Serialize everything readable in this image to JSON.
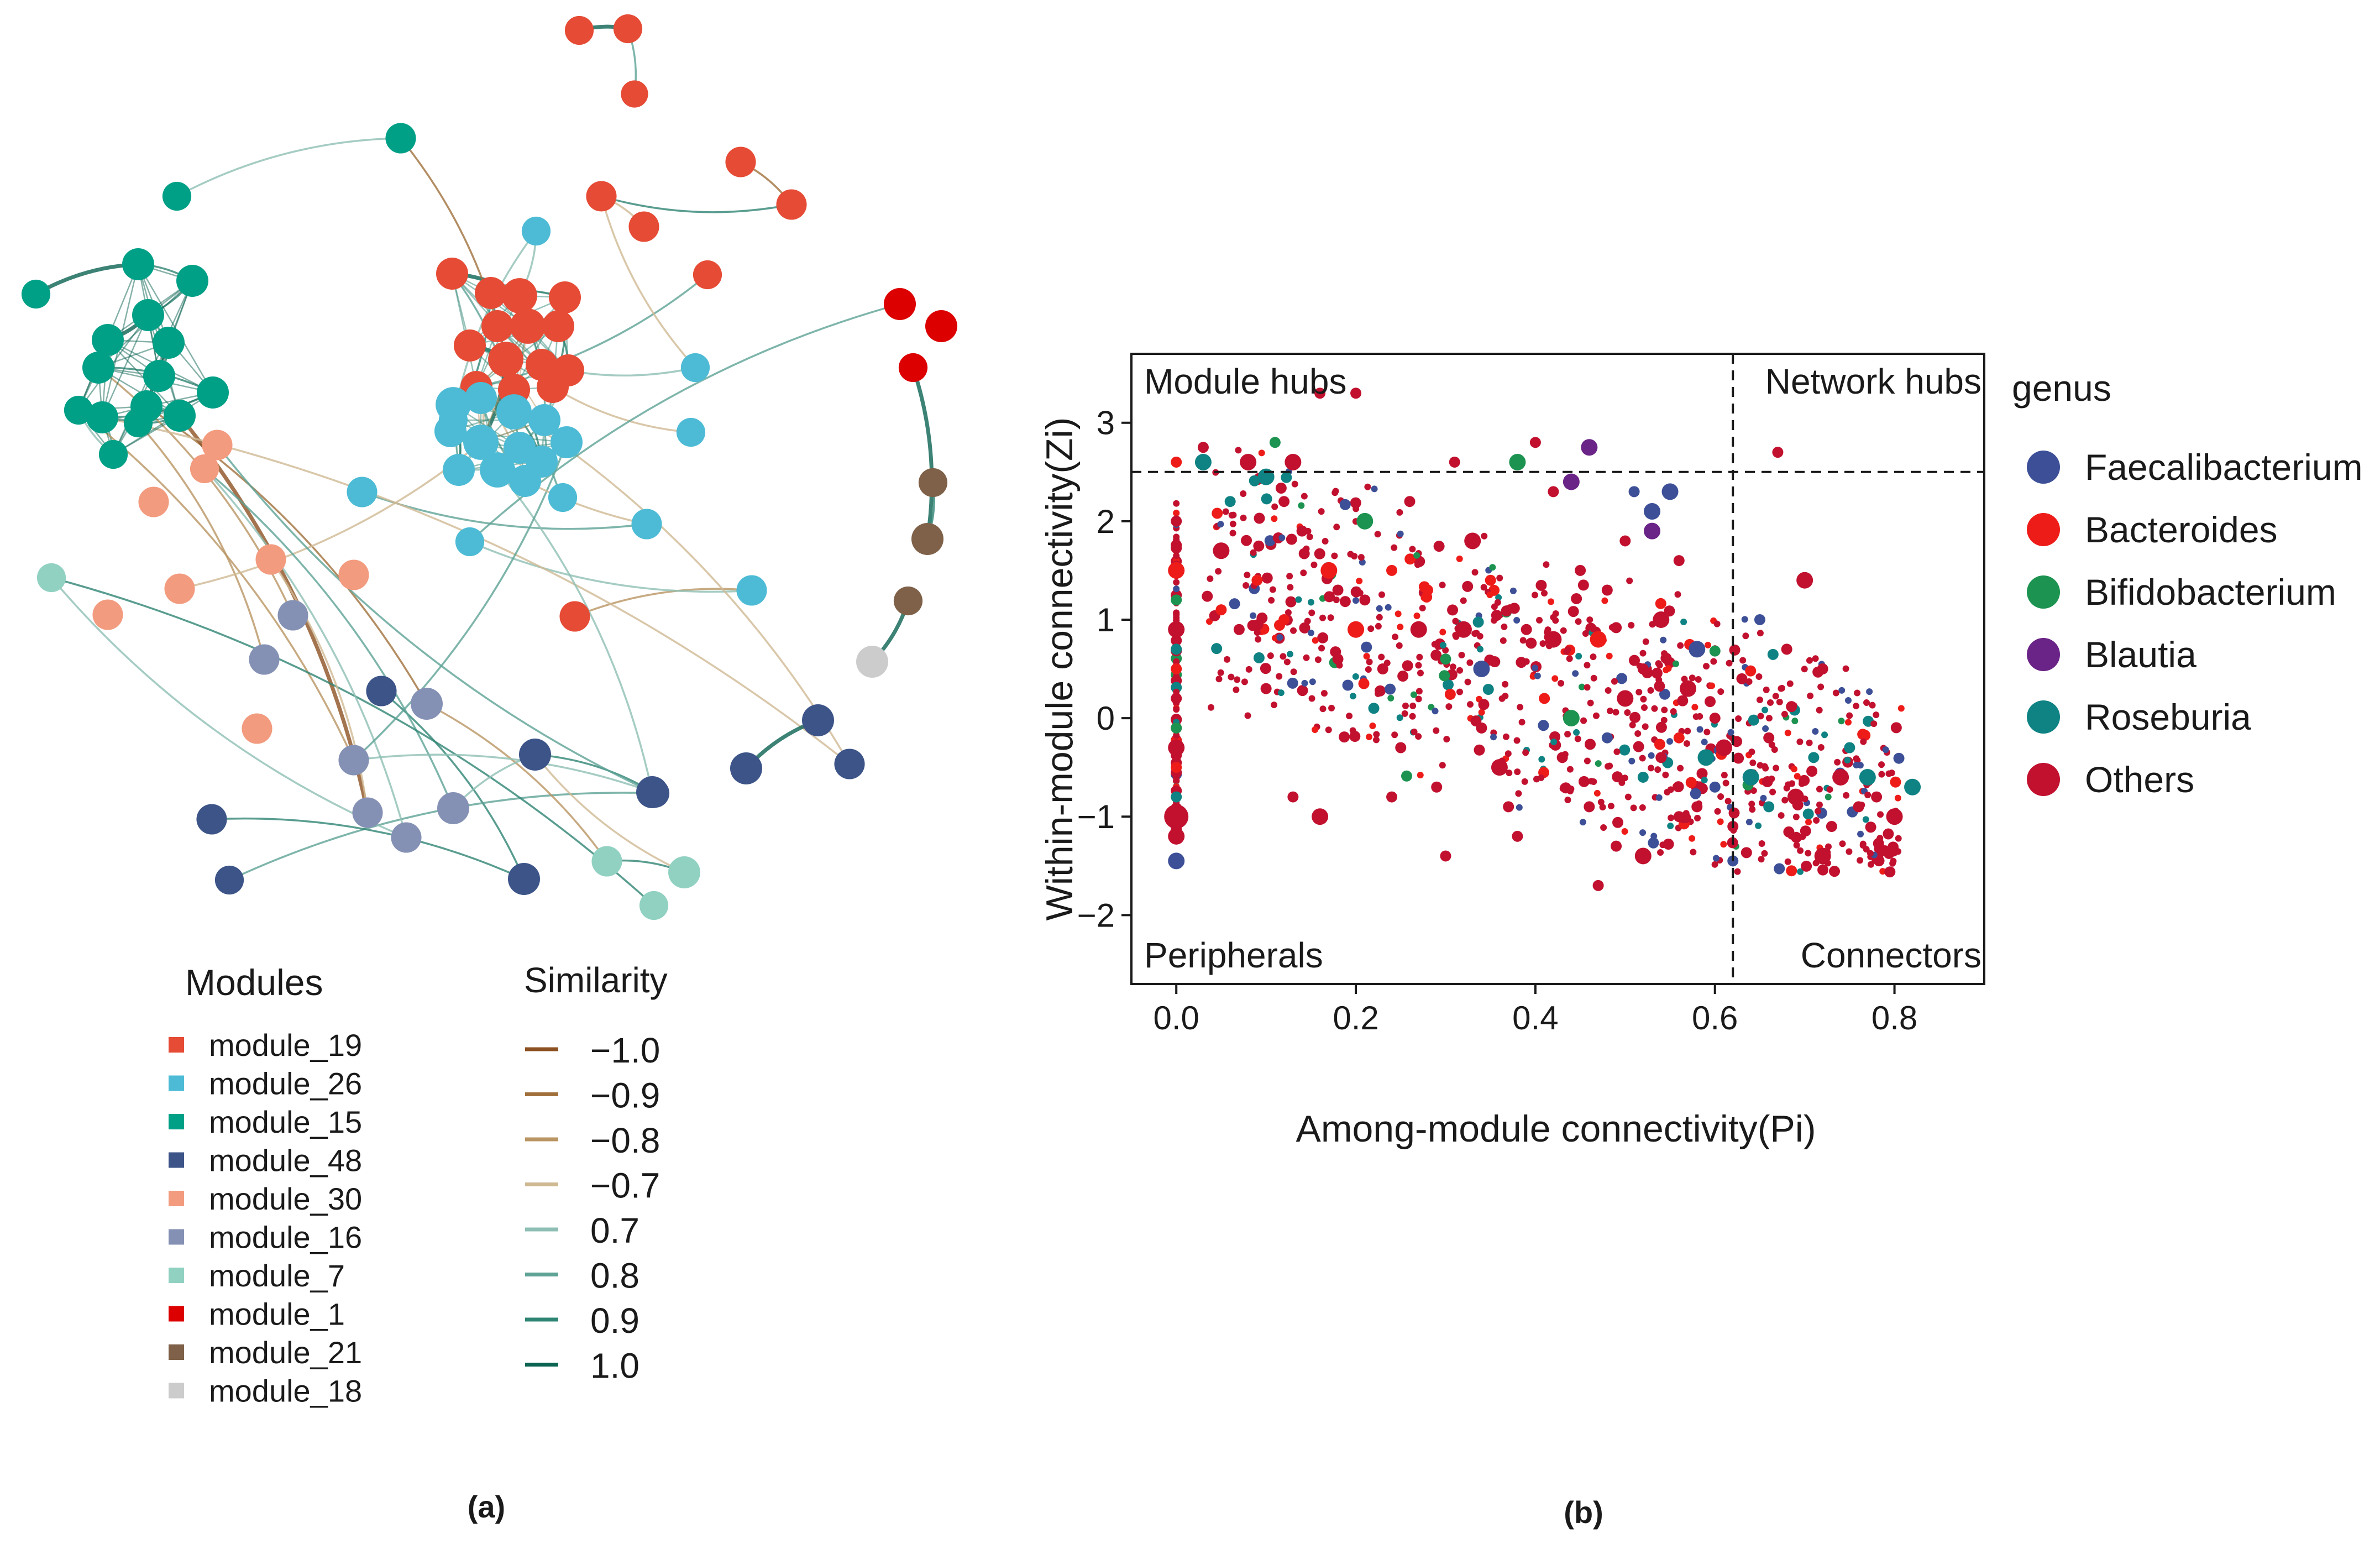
{
  "panel_labels": {
    "a": "(a)",
    "b": "(b)"
  },
  "network": {
    "modules_title": "Modules",
    "similarity_title": "Similarity",
    "modules": [
      {
        "name": "module_19",
        "color": "#e64b35"
      },
      {
        "name": "module_26",
        "color": "#4dbbd5"
      },
      {
        "name": "module_15",
        "color": "#00a087"
      },
      {
        "name": "module_48",
        "color": "#3c5488"
      },
      {
        "name": "module_30",
        "color": "#f39b7f"
      },
      {
        "name": "module_16",
        "color": "#8491b4"
      },
      {
        "name": "module_7",
        "color": "#91d1c2"
      },
      {
        "name": "module_1",
        "color": "#dc0000"
      },
      {
        "name": "module_21",
        "color": "#7e6148"
      },
      {
        "name": "module_18",
        "color": "#cccccc"
      }
    ],
    "similarity": [
      {
        "label": "−1.0",
        "color": "#8c5122"
      },
      {
        "label": "−0.9",
        "color": "#a0703c"
      },
      {
        "label": "−0.8",
        "color": "#b99563"
      },
      {
        "label": "−0.7",
        "color": "#cfb993"
      },
      {
        "label": "0.7",
        "color": "#8fbfb4"
      },
      {
        "label": "0.8",
        "color": "#5ea396"
      },
      {
        "label": "0.9",
        "color": "#2f8574"
      },
      {
        "label": "1.0",
        "color": "#0b6352"
      }
    ]
  },
  "chart_data": {
    "type": "scatter",
    "xlabel": "Among-module connectivity(Pi)",
    "ylabel": "Within-module connectivity(Zi)",
    "xlim": [
      -0.05,
      0.9
    ],
    "ylim": [
      -2.7,
      3.7
    ],
    "xticks": [
      0.0,
      0.2,
      0.4,
      0.6,
      0.8
    ],
    "xtick_labels": [
      "0.0",
      "0.2",
      "0.4",
      "0.6",
      "0.8"
    ],
    "yticks": [
      -2,
      -1,
      0,
      1,
      2,
      3
    ],
    "ytick_labels": [
      "−2",
      "−1",
      "0",
      "1",
      "2",
      "3"
    ],
    "thresholds": {
      "pi": 0.62,
      "zi": 2.5
    },
    "quadrant_labels": {
      "top_left": "Module hubs",
      "top_right": "Network hubs",
      "bottom_left": "Peripherals",
      "bottom_right": "Connectors"
    },
    "legend_title": "genus",
    "genera": [
      {
        "name": "Faecalibacterium",
        "color": "#3c4f97"
      },
      {
        "name": "Bacteroides",
        "color": "#ee1c19"
      },
      {
        "name": "Bifidobacterium",
        "color": "#1c9350"
      },
      {
        "name": "Blautia",
        "color": "#6a2386"
      },
      {
        "name": "Roseburia",
        "color": "#0f8283"
      },
      {
        "name": "Others",
        "color": "#c1112f"
      }
    ],
    "points": [
      [
        0.0,
        2.6,
        1,
        1
      ],
      [
        0.0,
        2.0,
        5,
        1
      ],
      [
        0.0,
        1.5,
        1,
        2
      ],
      [
        0.0,
        1.2,
        2,
        1
      ],
      [
        0.0,
        0.9,
        5,
        2
      ],
      [
        0.0,
        0.5,
        1,
        1
      ],
      [
        0.0,
        0.2,
        5,
        1
      ],
      [
        0.0,
        -0.3,
        5,
        2
      ],
      [
        0.0,
        -0.5,
        1,
        1
      ],
      [
        0.0,
        -0.8,
        4,
        1
      ],
      [
        0.0,
        -1.0,
        5,
        3
      ],
      [
        0.0,
        -1.2,
        5,
        2
      ],
      [
        0.0,
        -1.45,
        0,
        2
      ],
      [
        0.0,
        -0.1,
        2,
        1
      ],
      [
        0.0,
        0.7,
        4,
        1
      ],
      [
        0.03,
        2.75,
        5,
        1
      ],
      [
        0.03,
        2.6,
        4,
        2
      ],
      [
        0.05,
        1.7,
        5,
        2
      ],
      [
        0.05,
        1.1,
        1,
        1
      ],
      [
        0.06,
        2.2,
        4,
        1
      ],
      [
        0.07,
        0.9,
        5,
        1
      ],
      [
        0.08,
        2.6,
        5,
        2
      ],
      [
        0.09,
        1.4,
        1,
        1
      ],
      [
        0.1,
        2.45,
        4,
        2
      ],
      [
        0.1,
        0.3,
        5,
        1
      ],
      [
        0.11,
        2.8,
        2,
        1
      ],
      [
        0.12,
        2.2,
        5,
        1
      ],
      [
        0.12,
        1.0,
        1,
        1
      ],
      [
        0.13,
        -0.8,
        5,
        1
      ],
      [
        0.13,
        2.6,
        5,
        2
      ],
      [
        0.14,
        1.9,
        5,
        1
      ],
      [
        0.16,
        3.3,
        5,
        1
      ],
      [
        0.16,
        -1.0,
        5,
        2
      ],
      [
        0.17,
        1.5,
        1,
        2
      ],
      [
        0.18,
        1.3,
        5,
        1
      ],
      [
        0.18,
        0.6,
        5,
        1
      ],
      [
        0.2,
        3.3,
        5,
        1
      ],
      [
        0.2,
        0.9,
        1,
        2
      ],
      [
        0.21,
        1.2,
        5,
        1
      ],
      [
        0.21,
        2.0,
        2,
        2
      ],
      [
        0.22,
        0.1,
        4,
        1
      ],
      [
        0.23,
        0.5,
        5,
        1
      ],
      [
        0.24,
        1.5,
        1,
        1
      ],
      [
        0.25,
        -0.3,
        5,
        1
      ],
      [
        0.26,
        2.2,
        5,
        1
      ],
      [
        0.27,
        0.9,
        5,
        2
      ],
      [
        0.28,
        1.3,
        1,
        1
      ],
      [
        0.29,
        -0.7,
        5,
        1
      ],
      [
        0.3,
        0.6,
        2,
        1
      ],
      [
        0.31,
        2.6,
        5,
        1
      ],
      [
        0.32,
        0.9,
        5,
        2
      ],
      [
        0.33,
        1.8,
        5,
        2
      ],
      [
        0.34,
        0.5,
        0,
        2
      ],
      [
        0.34,
        -0.1,
        5,
        1
      ],
      [
        0.35,
        1.4,
        1,
        1
      ],
      [
        0.36,
        -0.5,
        5,
        2
      ],
      [
        0.37,
        -0.9,
        5,
        1
      ],
      [
        0.38,
        2.6,
        2,
        2
      ],
      [
        0.39,
        0.9,
        5,
        1
      ],
      [
        0.4,
        2.8,
        5,
        1
      ],
      [
        0.41,
        0.2,
        1,
        1
      ],
      [
        0.42,
        2.3,
        5,
        1
      ],
      [
        0.42,
        0.8,
        5,
        2
      ],
      [
        0.43,
        -0.4,
        5,
        1
      ],
      [
        0.44,
        2.4,
        3,
        2
      ],
      [
        0.44,
        0.0,
        2,
        2
      ],
      [
        0.45,
        1.5,
        5,
        1
      ],
      [
        0.46,
        2.75,
        3,
        2
      ],
      [
        0.46,
        -0.9,
        5,
        1
      ],
      [
        0.47,
        0.8,
        1,
        2
      ],
      [
        0.48,
        1.3,
        5,
        1
      ],
      [
        0.48,
        -0.2,
        0,
        1
      ],
      [
        0.49,
        -1.3,
        5,
        1
      ],
      [
        0.5,
        0.2,
        5,
        2
      ],
      [
        0.5,
        1.8,
        5,
        1
      ],
      [
        0.51,
        2.3,
        0,
        1
      ],
      [
        0.52,
        -0.6,
        4,
        1
      ],
      [
        0.52,
        0.5,
        5,
        1
      ],
      [
        0.53,
        2.1,
        0,
        2
      ],
      [
        0.53,
        1.9,
        3,
        2
      ],
      [
        0.54,
        1.0,
        5,
        2
      ],
      [
        0.54,
        -0.4,
        5,
        1
      ],
      [
        0.55,
        2.3,
        0,
        2
      ],
      [
        0.56,
        1.6,
        5,
        1
      ],
      [
        0.56,
        -0.2,
        1,
        1
      ],
      [
        0.57,
        0.3,
        5,
        2
      ],
      [
        0.58,
        0.7,
        0,
        2
      ],
      [
        0.58,
        -0.9,
        5,
        1
      ],
      [
        0.59,
        -0.4,
        4,
        2
      ],
      [
        0.6,
        0.0,
        5,
        1
      ],
      [
        0.6,
        -0.7,
        0,
        1
      ],
      [
        0.61,
        -0.3,
        5,
        2
      ],
      [
        0.62,
        -1.1,
        5,
        1
      ],
      [
        0.62,
        -1.45,
        0,
        1
      ],
      [
        0.63,
        0.4,
        5,
        1
      ],
      [
        0.64,
        -0.6,
        4,
        2
      ],
      [
        0.65,
        1.0,
        0,
        1
      ],
      [
        0.66,
        -0.2,
        5,
        1
      ],
      [
        0.67,
        2.7,
        5,
        1
      ],
      [
        0.68,
        0.7,
        5,
        1
      ],
      [
        0.69,
        -0.8,
        5,
        2
      ],
      [
        0.7,
        1.4,
        5,
        2
      ],
      [
        0.71,
        -0.4,
        4,
        1
      ],
      [
        0.72,
        0.5,
        5,
        1
      ],
      [
        0.73,
        -1.1,
        5,
        1
      ],
      [
        0.74,
        -0.6,
        5,
        2
      ],
      [
        0.75,
        -0.3,
        4,
        1
      ],
      [
        0.76,
        -0.9,
        5,
        1
      ],
      [
        0.77,
        -0.6,
        4,
        2
      ],
      [
        0.78,
        -0.8,
        5,
        1
      ],
      [
        0.8,
        -1.0,
        5,
        2
      ],
      [
        0.82,
        -0.7,
        4,
        2
      ],
      [
        0.72,
        -1.4,
        5,
        2
      ],
      [
        0.66,
        -0.9,
        4,
        1
      ],
      [
        0.56,
        -1.0,
        5,
        1
      ],
      [
        0.52,
        -1.4,
        5,
        2
      ],
      [
        0.47,
        -1.7,
        5,
        1
      ],
      [
        0.38,
        -1.2,
        5,
        1
      ],
      [
        0.3,
        -1.4,
        5,
        1
      ],
      [
        0.24,
        -0.8,
        5,
        1
      ]
    ],
    "cloud_seed": 42,
    "cloud_count": 900
  }
}
